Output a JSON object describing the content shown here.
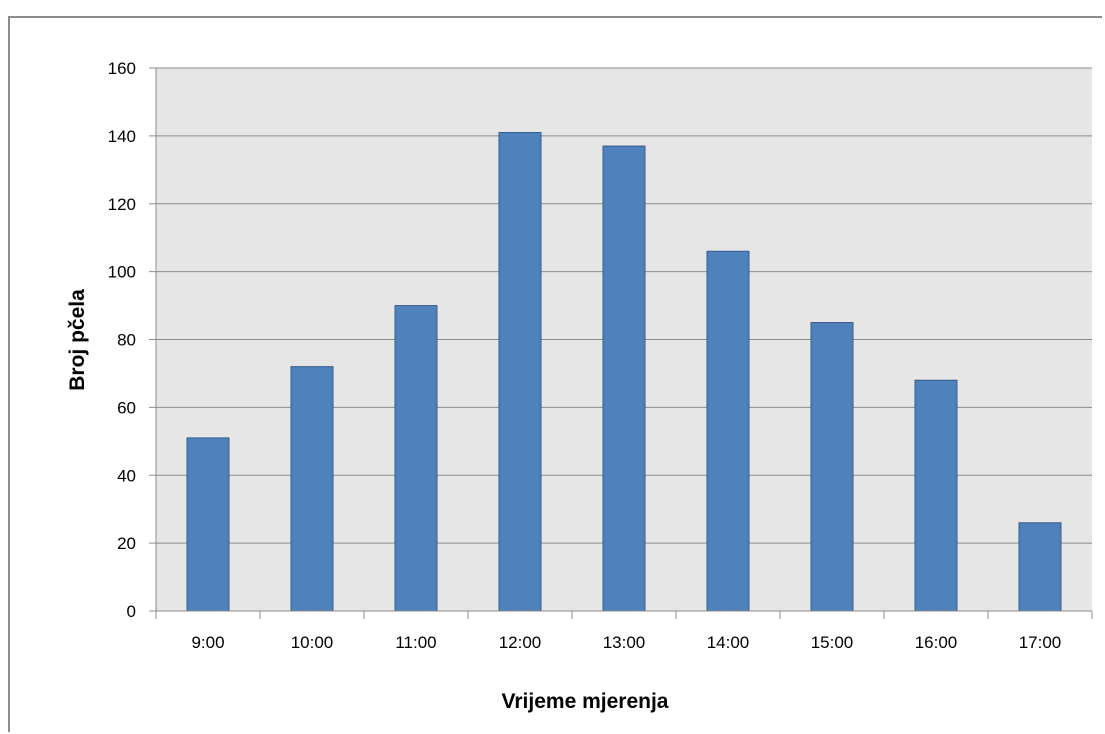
{
  "chart_data": {
    "type": "bar",
    "categories": [
      "9:00",
      "10:00",
      "11:00",
      "12:00",
      "13:00",
      "14:00",
      "15:00",
      "16:00",
      "17:00"
    ],
    "values": [
      51,
      72,
      90,
      141,
      137,
      106,
      85,
      68,
      26
    ],
    "xlabel": "Vrijeme mjerenja",
    "ylabel": "Broj pčela",
    "ylim": [
      0,
      160
    ],
    "yticks": [
      0,
      20,
      40,
      60,
      80,
      100,
      120,
      140,
      160
    ],
    "grid": true,
    "legend": "none",
    "colors": {
      "bar_fill": "#4f81bd",
      "bar_stroke": "#385d8a",
      "plot_background": "#e6e6e6",
      "gridline": "#8c8c8c"
    }
  }
}
